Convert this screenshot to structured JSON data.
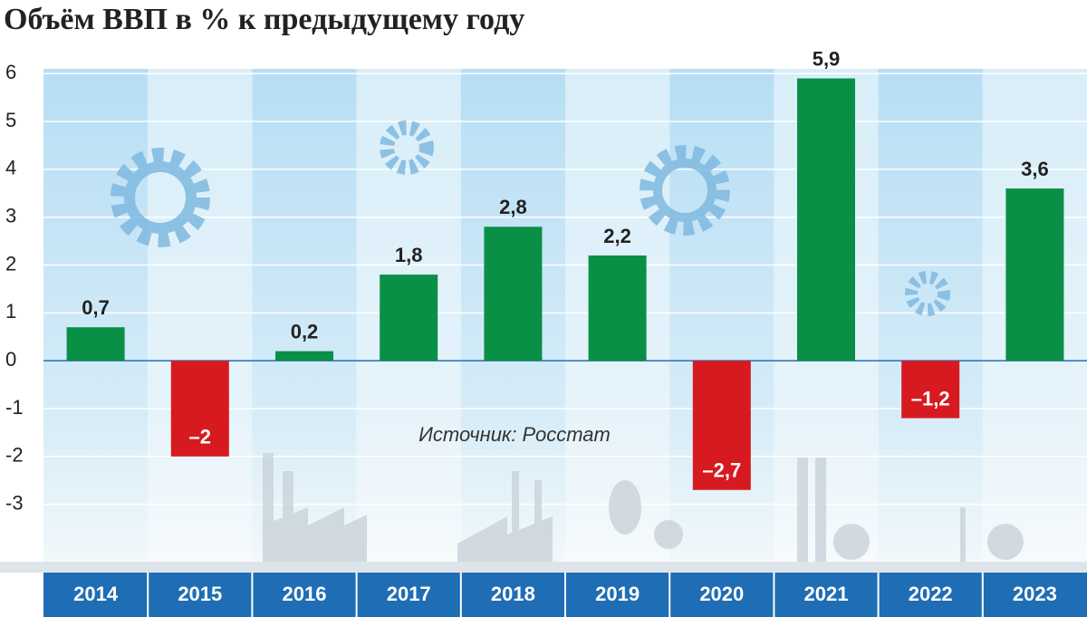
{
  "chart_data": {
    "type": "bar",
    "title": "Объём ВВП в % к предыдущему году",
    "annotation": "Источник: Росстат",
    "categories": [
      "2014",
      "2015",
      "2016",
      "2017",
      "2018",
      "2019",
      "2020",
      "2021",
      "2022",
      "2023"
    ],
    "values": [
      0.7,
      -2,
      0.2,
      1.8,
      2.8,
      2.2,
      -2.7,
      5.9,
      -1.2,
      3.6
    ],
    "value_labels": [
      "0,7",
      "–2",
      "0,2",
      "1,8",
      "2,8",
      "2,2",
      "–2,7",
      "5,9",
      "–1,2",
      "3,6"
    ],
    "color": "#0a8f47",
    "negative_color": "#d71a20",
    "ylim": [
      -4.2,
      6.1
    ],
    "yticks": [
      6,
      5,
      4,
      3,
      2,
      1,
      0,
      -1,
      -2,
      -3
    ],
    "grid": true
  }
}
